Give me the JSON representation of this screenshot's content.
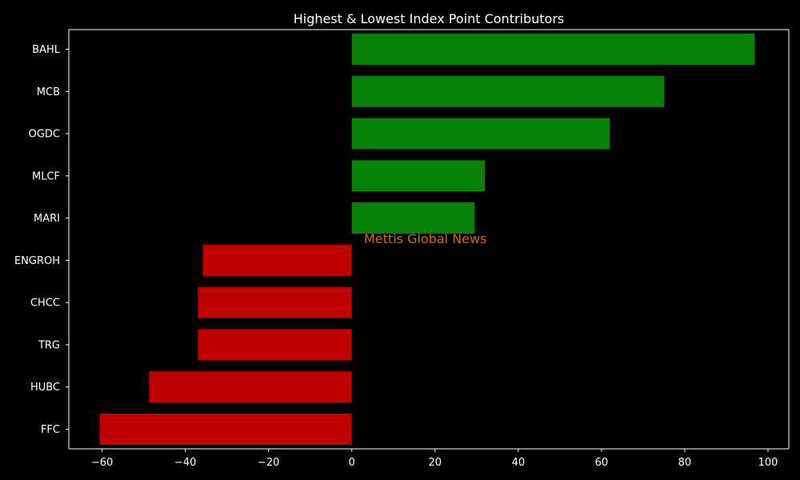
{
  "chart_data": {
    "type": "bar",
    "orientation": "horizontal",
    "title": "Highest & Lowest Index Point Contributors",
    "xlabel": "",
    "ylabel": "",
    "categories": [
      "BAHL",
      "MCB",
      "OGDC",
      "MLCF",
      "MARI",
      "ENGROH",
      "CHCC",
      "TRG",
      "HUBC",
      "FFC"
    ],
    "values": [
      96.8,
      75.1,
      62.0,
      32.0,
      29.5,
      -35.8,
      -37.0,
      -37.0,
      -48.7,
      -60.6
    ],
    "xlim": [
      -68,
      105
    ],
    "xticks": [
      -60,
      -40,
      -20,
      0,
      20,
      40,
      60,
      80,
      100
    ],
    "xtick_labels": [
      "−60",
      "−40",
      "−20",
      "0",
      "20",
      "40",
      "60",
      "80",
      "100"
    ],
    "grid": false,
    "legend": "none",
    "colors": {
      "positive": "#078207",
      "negative": "#c00000",
      "background": "#000000",
      "axes": "#ffffff",
      "text": "#ffffff",
      "watermark": "#d2691e"
    },
    "watermark": "Mettis Global News"
  }
}
